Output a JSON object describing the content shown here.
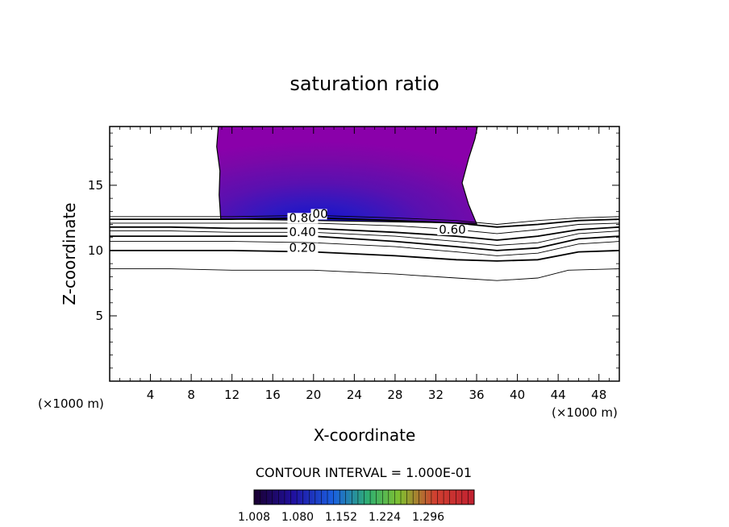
{
  "chart_data": {
    "type": "contour",
    "title": "saturation ratio",
    "xlabel": "X-coordinate",
    "ylabel": "Z-coordinate",
    "x_unit_left": "(×1000 m)",
    "x_unit_right": "(×1000 m)",
    "xlim": [
      0,
      50
    ],
    "ylim": [
      0,
      19.5
    ],
    "xticks": [
      4,
      8,
      12,
      16,
      20,
      24,
      28,
      32,
      36,
      40,
      44,
      48
    ],
    "yticks": [
      5,
      10,
      15
    ],
    "contour_interval_text": "CONTOUR INTERVAL = 1.000E-01",
    "contour_labels": [
      {
        "text": "0.80",
        "x": 17.6,
        "z": 12.2
      },
      {
        "text": "0.40",
        "x": 17.6,
        "z": 11.1
      },
      {
        "text": "0.20",
        "x": 17.6,
        "z": 9.9
      },
      {
        "text": "0.60",
        "x": 32.3,
        "z": 11.3
      },
      {
        "text": "00",
        "x": 19.9,
        "z": 12.5
      }
    ],
    "contour_lines": [
      {
        "points": [
          [
            0,
            12.6
          ],
          [
            6,
            12.6
          ],
          [
            12,
            12.6
          ],
          [
            20,
            12.7
          ],
          [
            28,
            12.5
          ],
          [
            34,
            12.3
          ],
          [
            38,
            12.0
          ],
          [
            42,
            12.3
          ],
          [
            46,
            12.5
          ],
          [
            50,
            12.6
          ]
        ],
        "bold": false
      },
      {
        "points": [
          [
            0,
            12.4
          ],
          [
            6,
            12.4
          ],
          [
            12,
            12.4
          ],
          [
            20,
            12.5
          ],
          [
            28,
            12.3
          ],
          [
            34,
            12.1
          ],
          [
            38,
            11.8
          ],
          [
            42,
            12.0
          ],
          [
            46,
            12.3
          ],
          [
            50,
            12.4
          ]
        ],
        "bold": true
      },
      {
        "points": [
          [
            0,
            12.1
          ],
          [
            6,
            12.1
          ],
          [
            12,
            12.1
          ],
          [
            20,
            12.1
          ],
          [
            28,
            11.9
          ],
          [
            34,
            11.6
          ],
          [
            38,
            11.3
          ],
          [
            42,
            11.6
          ],
          [
            46,
            12.0
          ],
          [
            50,
            12.1
          ]
        ],
        "bold": false
      },
      {
        "points": [
          [
            0,
            11.8
          ],
          [
            6,
            11.8
          ],
          [
            12,
            11.7
          ],
          [
            20,
            11.7
          ],
          [
            28,
            11.4
          ],
          [
            34,
            11.1
          ],
          [
            38,
            10.8
          ],
          [
            42,
            11.1
          ],
          [
            46,
            11.6
          ],
          [
            50,
            11.8
          ]
        ],
        "bold": true
      },
      {
        "points": [
          [
            0,
            11.5
          ],
          [
            6,
            11.5
          ],
          [
            12,
            11.4
          ],
          [
            20,
            11.4
          ],
          [
            28,
            11.1
          ],
          [
            34,
            10.7
          ],
          [
            38,
            10.4
          ],
          [
            42,
            10.6
          ],
          [
            46,
            11.3
          ],
          [
            50,
            11.5
          ]
        ],
        "bold": false
      },
      {
        "points": [
          [
            0,
            11.1
          ],
          [
            6,
            11.1
          ],
          [
            12,
            11.1
          ],
          [
            20,
            11.1
          ],
          [
            28,
            10.7
          ],
          [
            34,
            10.3
          ],
          [
            38,
            10.0
          ],
          [
            42,
            10.2
          ],
          [
            46,
            10.9
          ],
          [
            50,
            11.1
          ]
        ],
        "bold": true
      },
      {
        "points": [
          [
            0,
            10.7
          ],
          [
            6,
            10.7
          ],
          [
            12,
            10.7
          ],
          [
            20,
            10.6
          ],
          [
            28,
            10.3
          ],
          [
            34,
            9.9
          ],
          [
            38,
            9.6
          ],
          [
            42,
            9.8
          ],
          [
            46,
            10.5
          ],
          [
            50,
            10.7
          ]
        ],
        "bold": false
      },
      {
        "points": [
          [
            0,
            10.0
          ],
          [
            6,
            10.0
          ],
          [
            12,
            10.0
          ],
          [
            20,
            9.9
          ],
          [
            28,
            9.6
          ],
          [
            34,
            9.3
          ],
          [
            38,
            9.2
          ],
          [
            42,
            9.3
          ],
          [
            46,
            9.9
          ],
          [
            50,
            10.0
          ]
        ],
        "bold": true
      },
      {
        "points": [
          [
            0,
            8.6
          ],
          [
            6,
            8.6
          ],
          [
            12,
            8.5
          ],
          [
            20,
            8.5
          ],
          [
            28,
            8.2
          ],
          [
            34,
            7.9
          ],
          [
            38,
            7.7
          ],
          [
            42,
            7.9
          ],
          [
            45,
            8.5
          ],
          [
            50,
            8.6
          ]
        ],
        "bold": false
      }
    ],
    "supersaturation_region": {
      "x_range": [
        10.5,
        36.0
      ],
      "z_range": [
        12.3,
        19.5
      ],
      "fill_color_outer": "#8a00aa",
      "fill_color_inner": "#1a10cc"
    },
    "colorbar": {
      "tick_labels": [
        "1.008",
        "1.080",
        "1.152",
        "1.224",
        "1.296"
      ],
      "colors": [
        "#2a0040",
        "#2a10aa",
        "#1a60e0",
        "#20b070",
        "#90c020",
        "#e04020",
        "#d02020"
      ]
    }
  }
}
